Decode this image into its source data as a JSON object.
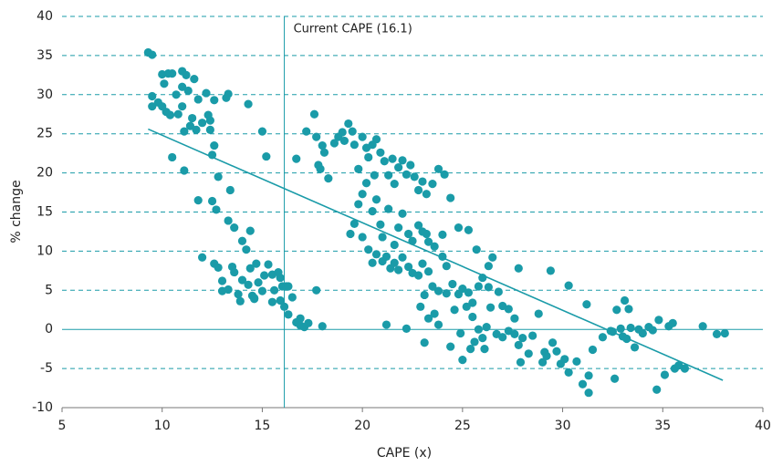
{
  "chart_data": {
    "type": "scatter",
    "x_label": "CAPE (x)",
    "y_label": "% change",
    "annotation": {
      "x": 16.1,
      "label": "Current CAPE (16.1)"
    },
    "trend_line": {
      "x": [
        9.3,
        38
      ],
      "y": [
        25.6,
        -6.5
      ]
    },
    "color": "#1a9ba8",
    "grid": true,
    "xlim": [
      5,
      40
    ],
    "xticks": [
      5,
      10,
      15,
      20,
      25,
      30,
      35,
      40
    ],
    "ylim": [
      -10,
      40
    ],
    "yticks": [
      -10,
      -5,
      0,
      5,
      10,
      15,
      20,
      25,
      30,
      35,
      40
    ],
    "x": [
      9.3,
      9.5,
      9.5,
      9.5,
      9.8,
      10,
      10,
      10.1,
      10.3,
      10.5,
      10.2,
      10.4,
      10.5,
      10.7,
      10.8,
      11,
      11,
      11,
      11.1,
      11.2,
      11.3,
      11.4,
      11.5,
      11.6,
      11.7,
      11.1,
      11.8,
      12,
      12.2,
      12.3,
      12.4,
      12.5,
      12.4,
      12.6,
      12.6,
      13.2,
      13.3,
      14.3,
      15,
      15.2,
      11.8,
      12.5,
      12.8,
      12.7,
      13.3,
      13.4,
      13.6,
      14,
      14.2,
      14.4,
      12,
      12.6,
      12.8,
      13,
      13.3,
      13.5,
      13.6,
      13.8,
      14,
      14.3,
      14.4,
      14.5,
      14.6,
      14.7,
      14.8,
      15,
      15.1,
      15.3,
      15.5,
      15.6,
      15.8,
      15.9,
      15.5,
      16,
      16.2,
      16.3,
      15.9,
      16.1,
      16.3,
      16.5,
      16.7,
      16.9,
      16.9,
      17.1,
      17.3,
      17.7,
      18,
      14.6,
      13.9,
      13,
      16.7,
      17.2,
      17.6,
      17.7,
      17.8,
      18,
      17.9,
      18.1,
      18.3,
      18.6,
      18.8,
      19,
      19.1,
      19.3,
      19.5,
      19.6,
      19.8,
      20,
      20.2,
      20.3,
      20.5,
      20.7,
      20.6,
      20.9,
      21.1,
      21.3,
      21.5,
      21.6,
      21.8,
      22,
      22.2,
      22.4,
      22.6,
      22.8,
      23,
      23.2,
      23.5,
      23.8,
      24.1,
      24.4,
      24.8,
      25.3,
      19.4,
      19.6,
      19.8,
      20,
      20.2,
      20.5,
      20.7,
      20.9,
      21,
      21.3,
      21.6,
      21.8,
      22,
      22.3,
      22.5,
      22.8,
      23,
      23.3,
      23.6,
      24,
      20,
      20.3,
      20.5,
      20.7,
      21,
      21.2,
      21.4,
      21.6,
      21.8,
      22,
      22.3,
      22.5,
      22.8,
      23,
      23.3,
      23.5,
      23.8,
      24,
      24.2,
      24.5,
      24.8,
      25,
      25.3,
      25.5,
      25.8,
      26,
      26.3,
      26.5,
      26.8,
      27,
      27.3,
      27.8,
      25.7,
      26.3,
      23.2,
      22.9,
      23.1,
      23.3,
      23.6,
      23.8,
      24.2,
      24.6,
      24.9,
      25.2,
      25.5,
      25.8,
      26,
      26.2,
      26.4,
      26.7,
      27,
      27.3,
      27.6,
      27.8,
      28,
      28.3,
      28.5,
      28.8,
      29,
      29.2,
      29.5,
      29.7,
      29.9,
      30.1,
      30.3,
      29.4,
      30.3,
      21.2,
      22.2,
      23.1,
      24.4,
      25,
      25.4,
      25.6,
      26.1,
      27.9,
      30.7,
      31,
      31.3,
      31.3,
      31.5,
      31.2,
      32,
      32.5,
      32.7,
      33,
      33.2,
      33.4,
      33.6,
      33.8,
      34,
      34.3,
      34.7,
      34.8,
      35.1,
      35.3,
      35.6,
      35.8,
      36.1,
      32.6,
      33.1,
      33.3,
      34.5,
      35.5,
      37,
      37.7,
      38.1,
      32.4,
      32.9,
      27.6,
      29.1
    ],
    "values": [
      35.4,
      35.1,
      29.8,
      28.5,
      29,
      28.5,
      32.6,
      31.4,
      32.7,
      32.7,
      27.8,
      27.4,
      22,
      30,
      27.5,
      33,
      31,
      28.5,
      25.3,
      32.5,
      30.5,
      26,
      27,
      32,
      25.5,
      20.3,
      29.4,
      26.4,
      30.2,
      27.4,
      26.7,
      22.3,
      25.5,
      23.5,
      29.3,
      29.6,
      30.1,
      28.8,
      25.3,
      22.1,
      16.5,
      16.4,
      19.5,
      15.3,
      13.9,
      17.8,
      13,
      11.3,
      10.2,
      12.6,
      9.2,
      8.4,
      7.9,
      6.2,
      5.1,
      8,
      7.3,
      4.5,
      6.3,
      5.7,
      7.8,
      4.3,
      4,
      8.4,
      6,
      4.9,
      6.9,
      8.3,
      7,
      5,
      7.3,
      6.6,
      3.5,
      5.5,
      5.5,
      5.5,
      3.7,
      2.9,
      1.9,
      4.1,
      0.9,
      0.5,
      1.4,
      0.3,
      0.8,
      5,
      0.4,
      3.9,
      3.6,
      4.9,
      21.8,
      25.3,
      27.5,
      24.6,
      21,
      23.5,
      20.5,
      22.6,
      19.3,
      23.8,
      24.6,
      25.2,
      24.1,
      26.3,
      25.3,
      23.6,
      20.5,
      24.6,
      23.2,
      22,
      23.6,
      24.3,
      19.7,
      22.6,
      21.5,
      19.7,
      21.8,
      18.6,
      20.7,
      21.6,
      19.8,
      21,
      19.5,
      17.8,
      18.9,
      17.3,
      18.6,
      20.5,
      19.8,
      16.8,
      13,
      12.7,
      12.2,
      13.5,
      16,
      17.3,
      18.7,
      15.1,
      16.6,
      13.4,
      11.8,
      15.4,
      10.8,
      13,
      14.8,
      12.2,
      11.3,
      13.3,
      12.5,
      11.2,
      10.6,
      12.1,
      11.8,
      10.2,
      8.5,
      9.6,
      8.7,
      9.3,
      7.8,
      8.5,
      7.6,
      9.2,
      8,
      7.2,
      6.9,
      8.4,
      7.4,
      5.5,
      4.9,
      9.3,
      8.1,
      5.8,
      4.5,
      5.2,
      4.7,
      3.4,
      5.5,
      6.6,
      5.4,
      9.2,
      4.8,
      3,
      2.6,
      7.8,
      10.2,
      8.1,
      12.2,
      2.9,
      4.4,
      1.4,
      2,
      0.6,
      4.6,
      2.5,
      -0.5,
      2.9,
      1.6,
      0,
      -1.1,
      0.3,
      2.8,
      -0.6,
      -1,
      -0.2,
      1.4,
      -2,
      -1.1,
      -3.1,
      -0.8,
      2,
      -4.2,
      -3.4,
      -1.7,
      -2.8,
      -4.4,
      -3.8,
      -5.5,
      7.5,
      5.6,
      0.6,
      0.1,
      -1.7,
      -2.2,
      -3.9,
      -2.5,
      -1.6,
      -2.5,
      -4.2,
      -4.1,
      -7,
      -8.1,
      -5.9,
      -2.6,
      3.2,
      -1,
      -0.3,
      2.5,
      -0.9,
      -1.2,
      0.2,
      -2.3,
      0,
      -0.5,
      0.3,
      -7.7,
      1.2,
      -5.8,
      0.4,
      -5,
      -4.6,
      -5,
      -6.3,
      3.7,
      2.6,
      -0.1,
      0.8,
      0.4,
      -0.6,
      -0.5,
      -0.2,
      0.1,
      -0.6,
      -2.9
    ]
  }
}
